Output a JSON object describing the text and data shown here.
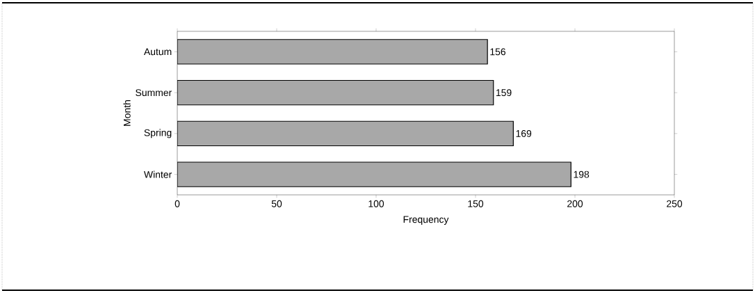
{
  "chart_data": {
    "type": "bar",
    "orientation": "horizontal",
    "xlabel": "Frequency",
    "ylabel": "Month",
    "categories": [
      "Autum",
      "Summer",
      "Spring",
      "Winter"
    ],
    "values": [
      156,
      159,
      169,
      198
    ],
    "color": "#a8a8a8",
    "xlim": [
      0,
      250
    ],
    "xticks": [
      0,
      50,
      100,
      150,
      200,
      250
    ],
    "data_labels": true
  }
}
